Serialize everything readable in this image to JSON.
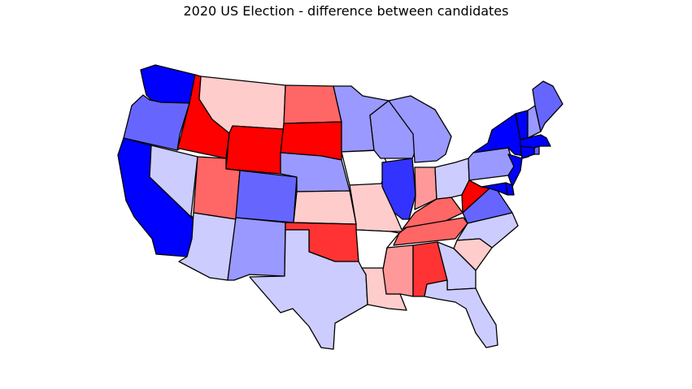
{
  "title": "2020 US Election - difference between candidates",
  "color_scale": {
    "dem_strong": "#0000ff",
    "dem_4": "#3333ff",
    "dem_3": "#6666ff",
    "dem_2": "#9999ff",
    "dem_1": "#ccccff",
    "neutral": "#ffffff",
    "rep_1": "#ffcccc",
    "rep_2": "#ff9999",
    "rep_3": "#ff6666",
    "rep_4": "#ff3333",
    "rep_strong": "#ff0000",
    "outline": "#000000"
  },
  "states": [
    {
      "name": "Washington",
      "fill": "dem_strong"
    },
    {
      "name": "Oregon",
      "fill": "dem_3"
    },
    {
      "name": "California",
      "fill": "dem_strong"
    },
    {
      "name": "Nevada",
      "fill": "dem_1"
    },
    {
      "name": "Idaho",
      "fill": "rep_strong"
    },
    {
      "name": "Montana",
      "fill": "rep_1"
    },
    {
      "name": "Wyoming",
      "fill": "rep_strong"
    },
    {
      "name": "Utah",
      "fill": "rep_3"
    },
    {
      "name": "Arizona",
      "fill": "dem_1"
    },
    {
      "name": "Colorado",
      "fill": "dem_3"
    },
    {
      "name": "New Mexico",
      "fill": "dem_2"
    },
    {
      "name": "North Dakota",
      "fill": "rep_3"
    },
    {
      "name": "South Dakota",
      "fill": "rep_strong"
    },
    {
      "name": "Nebraska",
      "fill": "dem_2"
    },
    {
      "name": "Kansas",
      "fill": "rep_1"
    },
    {
      "name": "Oklahoma",
      "fill": "rep_4"
    },
    {
      "name": "Texas",
      "fill": "dem_1"
    },
    {
      "name": "Minnesota",
      "fill": "dem_2"
    },
    {
      "name": "Iowa",
      "fill": "neutral"
    },
    {
      "name": "Missouri",
      "fill": "rep_1"
    },
    {
      "name": "Arkansas",
      "fill": "neutral"
    },
    {
      "name": "Louisiana",
      "fill": "rep_1"
    },
    {
      "name": "Wisconsin",
      "fill": "dem_2"
    },
    {
      "name": "Illinois",
      "fill": "dem_4"
    },
    {
      "name": "Michigan",
      "fill": "dem_2"
    },
    {
      "name": "Indiana",
      "fill": "rep_2"
    },
    {
      "name": "Kentucky",
      "fill": "rep_3"
    },
    {
      "name": "Tennessee",
      "fill": "rep_3"
    },
    {
      "name": "Mississippi",
      "fill": "rep_2"
    },
    {
      "name": "Alabama",
      "fill": "rep_4"
    },
    {
      "name": "Ohio",
      "fill": "dem_1"
    },
    {
      "name": "West Virginia",
      "fill": "rep_strong"
    },
    {
      "name": "Virginia",
      "fill": "dem_3"
    },
    {
      "name": "North Carolina",
      "fill": "dem_1"
    },
    {
      "name": "South Carolina",
      "fill": "rep_1"
    },
    {
      "name": "Georgia",
      "fill": "dem_1"
    },
    {
      "name": "Florida",
      "fill": "dem_1"
    },
    {
      "name": "Pennsylvania",
      "fill": "dem_2"
    },
    {
      "name": "New York",
      "fill": "dem_strong"
    },
    {
      "name": "Vermont",
      "fill": "dem_strong"
    },
    {
      "name": "New Hampshire",
      "fill": "dem_2"
    },
    {
      "name": "Maine",
      "fill": "dem_3"
    },
    {
      "name": "Massachusetts",
      "fill": "dem_strong"
    },
    {
      "name": "Rhode Island",
      "fill": "dem_3"
    },
    {
      "name": "Connecticut",
      "fill": "dem_strong"
    },
    {
      "name": "New Jersey",
      "fill": "dem_strong"
    },
    {
      "name": "Delaware",
      "fill": "dem_strong"
    },
    {
      "name": "Maryland",
      "fill": "dem_strong"
    }
  ]
}
